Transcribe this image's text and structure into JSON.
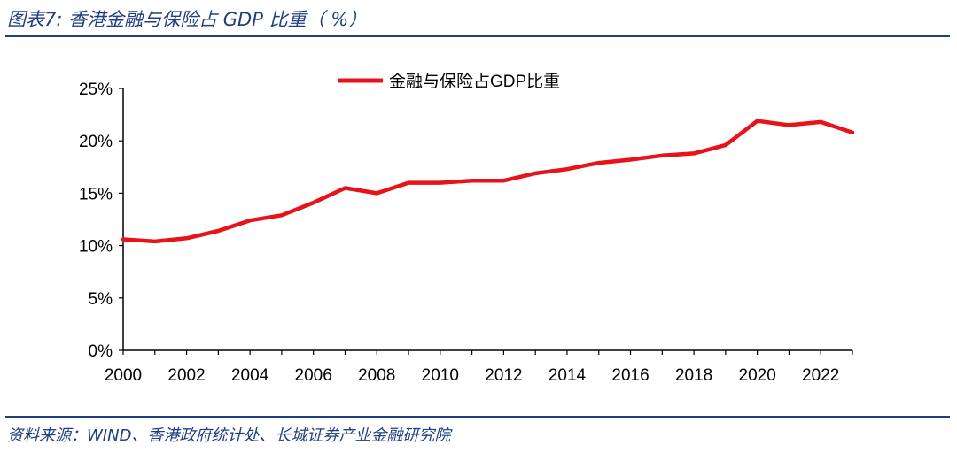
{
  "figure": {
    "title": "图表7:  香港金融与保险占 GDP 比重（ %）",
    "source": "资料来源：WIND、香港政府统计处、长城证券产业金融研究院"
  },
  "colors": {
    "line": "#e8131a",
    "accent": "#1f3f82",
    "axis": "#000000"
  },
  "chart_data": {
    "type": "line",
    "title": "",
    "xlabel": "",
    "ylabel": "",
    "x": [
      2000,
      2001,
      2002,
      2003,
      2004,
      2005,
      2006,
      2007,
      2008,
      2009,
      2010,
      2011,
      2012,
      2013,
      2014,
      2015,
      2016,
      2017,
      2018,
      2019,
      2020,
      2021,
      2022,
      2023
    ],
    "series": [
      {
        "name": "金融与保险占GDP比重",
        "values": [
          10.6,
          10.4,
          10.7,
          11.4,
          12.4,
          12.9,
          14.1,
          15.5,
          15.0,
          16.0,
          16.0,
          16.2,
          16.2,
          16.9,
          17.3,
          17.9,
          18.2,
          18.6,
          18.8,
          19.6,
          21.9,
          21.5,
          21.8,
          20.8
        ]
      }
    ],
    "x_ticks": [
      "2000",
      "2002",
      "2004",
      "2006",
      "2008",
      "2010",
      "2012",
      "2014",
      "2016",
      "2018",
      "2020",
      "2022"
    ],
    "y_ticks": [
      "0%",
      "5%",
      "10%",
      "15%",
      "20%",
      "25%"
    ],
    "ylim": [
      0,
      25
    ],
    "xlim": [
      2000,
      2023
    ],
    "grid": false,
    "legend_position": "top-center"
  }
}
